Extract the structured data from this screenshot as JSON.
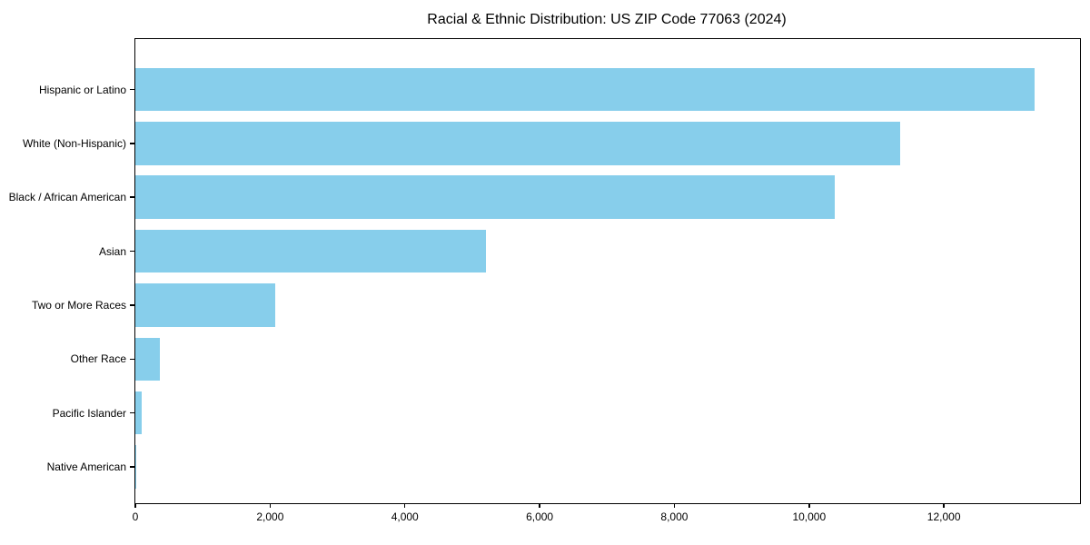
{
  "title": "Racial & Ethnic Distribution: US ZIP Code 77063 (2024)",
  "chart_data": {
    "type": "bar",
    "orientation": "horizontal",
    "title": "Racial & Ethnic Distribution: US ZIP Code 77063 (2024)",
    "categories": [
      "Hispanic or Latino",
      "White (Non-Hispanic)",
      "Black / African American",
      "Asian",
      "Two or More Races",
      "Other Race",
      "Pacific Islander",
      "Native American"
    ],
    "values": [
      13350,
      11350,
      10380,
      5200,
      2080,
      360,
      100,
      15
    ],
    "xlabel": "",
    "ylabel": "",
    "xlim": [
      0,
      14020
    ],
    "x_ticks": [
      0,
      2000,
      4000,
      6000,
      8000,
      10000,
      12000
    ],
    "x_tick_labels": [
      "0",
      "2,000",
      "4,000",
      "6,000",
      "8,000",
      "10,000",
      "12,000"
    ],
    "grid": false,
    "legend": "none",
    "bar_color": "#87CEEB",
    "background_color": "#ffffff",
    "spine_color": "#000000"
  }
}
